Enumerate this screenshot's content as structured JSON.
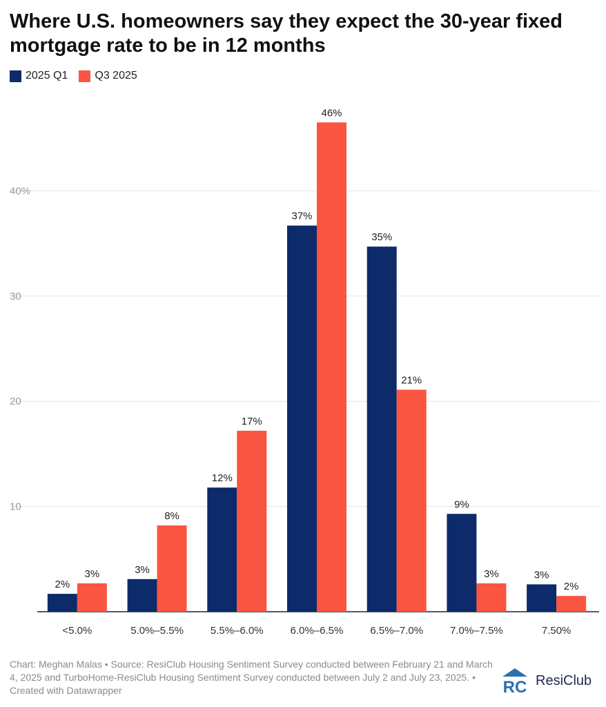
{
  "chart_data": {
    "type": "bar",
    "title": "Where U.S. homeowners say they expect the 30-year fixed mortgage rate to be in 12 months",
    "categories": [
      "<5.0%",
      "5.0%–5.5%",
      "5.5%–6.0%",
      "6.0%–6.5%",
      "6.5%–7.0%",
      "7.0%–7.5%",
      "7.50%"
    ],
    "series": [
      {
        "name": "2025 Q1",
        "color": "#0d2a6b",
        "values": [
          1.7,
          3.1,
          11.8,
          36.7,
          34.7,
          9.3,
          2.6
        ],
        "labels": [
          "2%",
          "3%",
          "12%",
          "37%",
          "35%",
          "9%",
          "3%"
        ]
      },
      {
        "name": "Q3 2025",
        "color": "#fa5540",
        "values": [
          2.7,
          8.2,
          17.2,
          46.5,
          21.1,
          2.7,
          1.5
        ],
        "labels": [
          "3%",
          "8%",
          "17%",
          "46%",
          "21%",
          "3%",
          "2%"
        ]
      }
    ],
    "ylim": [
      0,
      50
    ],
    "yticks": [
      10,
      20,
      30,
      40
    ],
    "ytick_labels": [
      "10",
      "20",
      "30",
      "40%"
    ],
    "grid": true,
    "legend": "top-left",
    "xlabel": "",
    "ylabel": ""
  },
  "footer": "Chart: Meghan Malas • Source: ResiClub Housing Sentiment Survey conducted between February 21 and March 4, 2025 and TurboHome-ResiClub Housing Sentiment Survey conducted between July 2 and July 23, 2025. • Created with Datawrapper",
  "brand": {
    "name": "ResiClub",
    "logo_text": "RC",
    "logo_color": "#2e6fb0"
  }
}
